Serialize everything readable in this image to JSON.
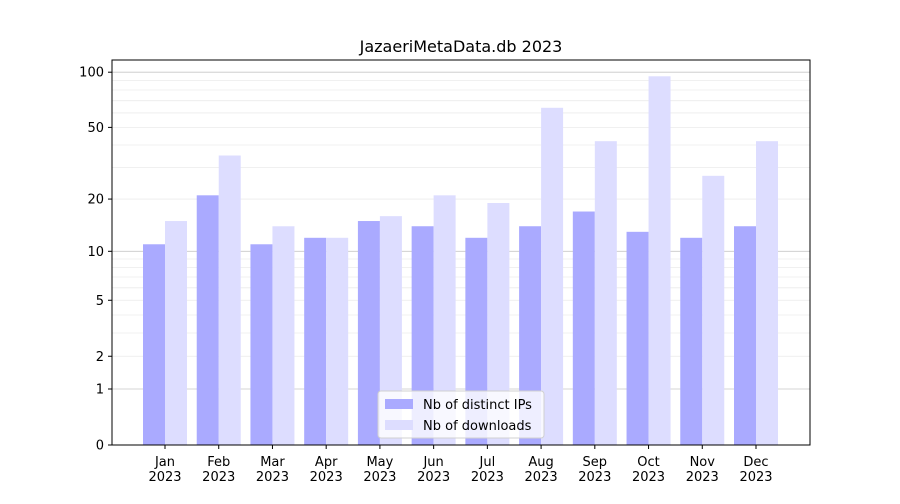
{
  "chart_data": {
    "type": "bar",
    "title": "JazaeriMetaData.db 2023",
    "xlabel": "",
    "ylabel": "",
    "yscale": "log(1+y)",
    "ylim": [
      0,
      120
    ],
    "yticks": [
      0,
      1,
      2,
      5,
      10,
      20,
      50,
      100
    ],
    "ytick_labels": [
      "0",
      "1",
      "2",
      "5",
      "10",
      "20",
      "50",
      "100"
    ],
    "grid": true,
    "legend_position": "bottom-center",
    "categories": [
      "Jan\n2023",
      "Feb\n2023",
      "Mar\n2023",
      "Apr\n2023",
      "May\n2023",
      "Jun\n2023",
      "Jul\n2023",
      "Aug\n2023",
      "Sep\n2023",
      "Oct\n2023",
      "Nov\n2023",
      "Dec\n2023"
    ],
    "series": [
      {
        "name": "Nb of distinct IPs",
        "color": "#aaaaff",
        "values": [
          11,
          21,
          11,
          12,
          15,
          14,
          12,
          14,
          17,
          13,
          12,
          14
        ]
      },
      {
        "name": "Nb of downloads",
        "color": "#ddddff",
        "values": [
          15,
          35,
          14,
          12,
          16,
          21,
          19,
          64,
          42,
          95,
          27,
          42
        ]
      }
    ]
  }
}
